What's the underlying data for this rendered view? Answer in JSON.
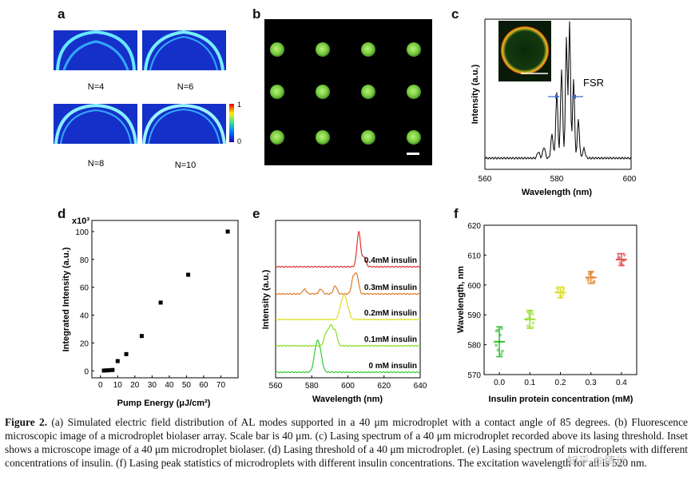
{
  "panel_letters": [
    "a",
    "b",
    "c",
    "d",
    "e",
    "f"
  ],
  "panel_a": {
    "labels": [
      "N=4",
      "N=6",
      "N=8",
      "N=10"
    ],
    "colorbar_max": "1",
    "colorbar_min": "0"
  },
  "panel_c": {
    "fsr_label": "FSR",
    "xlabel": "Wavelength (nm)",
    "ylabel": "Intensity (a.u.)",
    "xticks": [
      "560",
      "580",
      "600"
    ]
  },
  "chart_data": [
    {
      "type": "scatter",
      "panel": "d",
      "xlabel": "Pump Energy (μJ/cm²)",
      "ylabel": "Integrated Intensity (a.u.)",
      "y_multiplier": "x10³",
      "xlim": [
        -5,
        80
      ],
      "ylim": [
        -5,
        108
      ],
      "xticks": [
        0,
        10,
        20,
        30,
        40,
        50,
        60,
        70
      ],
      "yticks": [
        0,
        20,
        40,
        60,
        80,
        100
      ],
      "x": [
        2,
        3.5,
        5,
        7,
        10,
        15,
        24,
        35,
        51,
        74
      ],
      "y": [
        0.2,
        0.3,
        0.4,
        0.6,
        7,
        12,
        25,
        49,
        69,
        100
      ]
    },
    {
      "type": "line",
      "panel": "e",
      "xlabel": "Wavelength (nm)",
      "ylabel": "Intensity (a.u.)",
      "xlim": [
        560,
        640
      ],
      "xticks": [
        560,
        580,
        600,
        620,
        640
      ],
      "series": [
        {
          "name": "0 mM insulin",
          "color": "#33cc33",
          "peaks": [
            582,
            583.5,
            585
          ]
        },
        {
          "name": "0.1mM insulin",
          "color": "#88dd22",
          "peaks": [
            588,
            590.5,
            593
          ]
        },
        {
          "name": "0.2mM insulin",
          "color": "#dddd22",
          "peaks": [
            596,
            598,
            600
          ]
        },
        {
          "name": "0.3mM insulin",
          "color": "#e07a22",
          "peaks": [
            576,
            585,
            593,
            603,
            605
          ]
        },
        {
          "name": "0.4mM insulin",
          "color": "#dd3333",
          "peaks": [
            606,
            609
          ]
        }
      ]
    },
    {
      "type": "scatter",
      "panel": "f",
      "xlabel": "Insulin protein concentration (mM)",
      "ylabel": "Wavelength, nm",
      "xlim": [
        -0.05,
        0.45
      ],
      "ylim": [
        570,
        620
      ],
      "xticks": [
        "0.0",
        "0.1",
        "0.2",
        "0.3",
        "0.4"
      ],
      "yticks": [
        570,
        580,
        590,
        600,
        610,
        620
      ],
      "series": [
        {
          "x": 0.0,
          "mean": 581,
          "sd": 5,
          "color": "#33bb33"
        },
        {
          "x": 0.1,
          "mean": 588.5,
          "sd": 3,
          "color": "#99dd33"
        },
        {
          "x": 0.2,
          "mean": 597.5,
          "sd": 1.8,
          "color": "#dddd33"
        },
        {
          "x": 0.3,
          "mean": 602.5,
          "sd": 2,
          "color": "#e08833"
        },
        {
          "x": 0.4,
          "mean": 608.5,
          "sd": 2,
          "color": "#e05555"
        }
      ]
    }
  ],
  "caption": {
    "figure_label": "Figure 2.",
    "text": " (a) Simulated electric field distribution of AL modes supported in a 40 μm microdroplet with a contact angle of 85 degrees. (b) Fluorescence microscopic image of a microdroplet biolaser array. Scale bar is 40 μm. (c) Lasing spectrum of a 40 μm microdroplet recorded above its lasing threshold. Inset shows a microscope image of a 40 μm microdroplet biolaser. (d) Lasing threshold of a 40 μm microdroplet. (e) Lasing spectrum of microdroplets with different concentrations of insulin. (f) Lasing peak statistics of microdroplets with different insulin concentrations. The excitation wavelength for all is 520 nm."
  },
  "watermark": "知乎 @情丝"
}
